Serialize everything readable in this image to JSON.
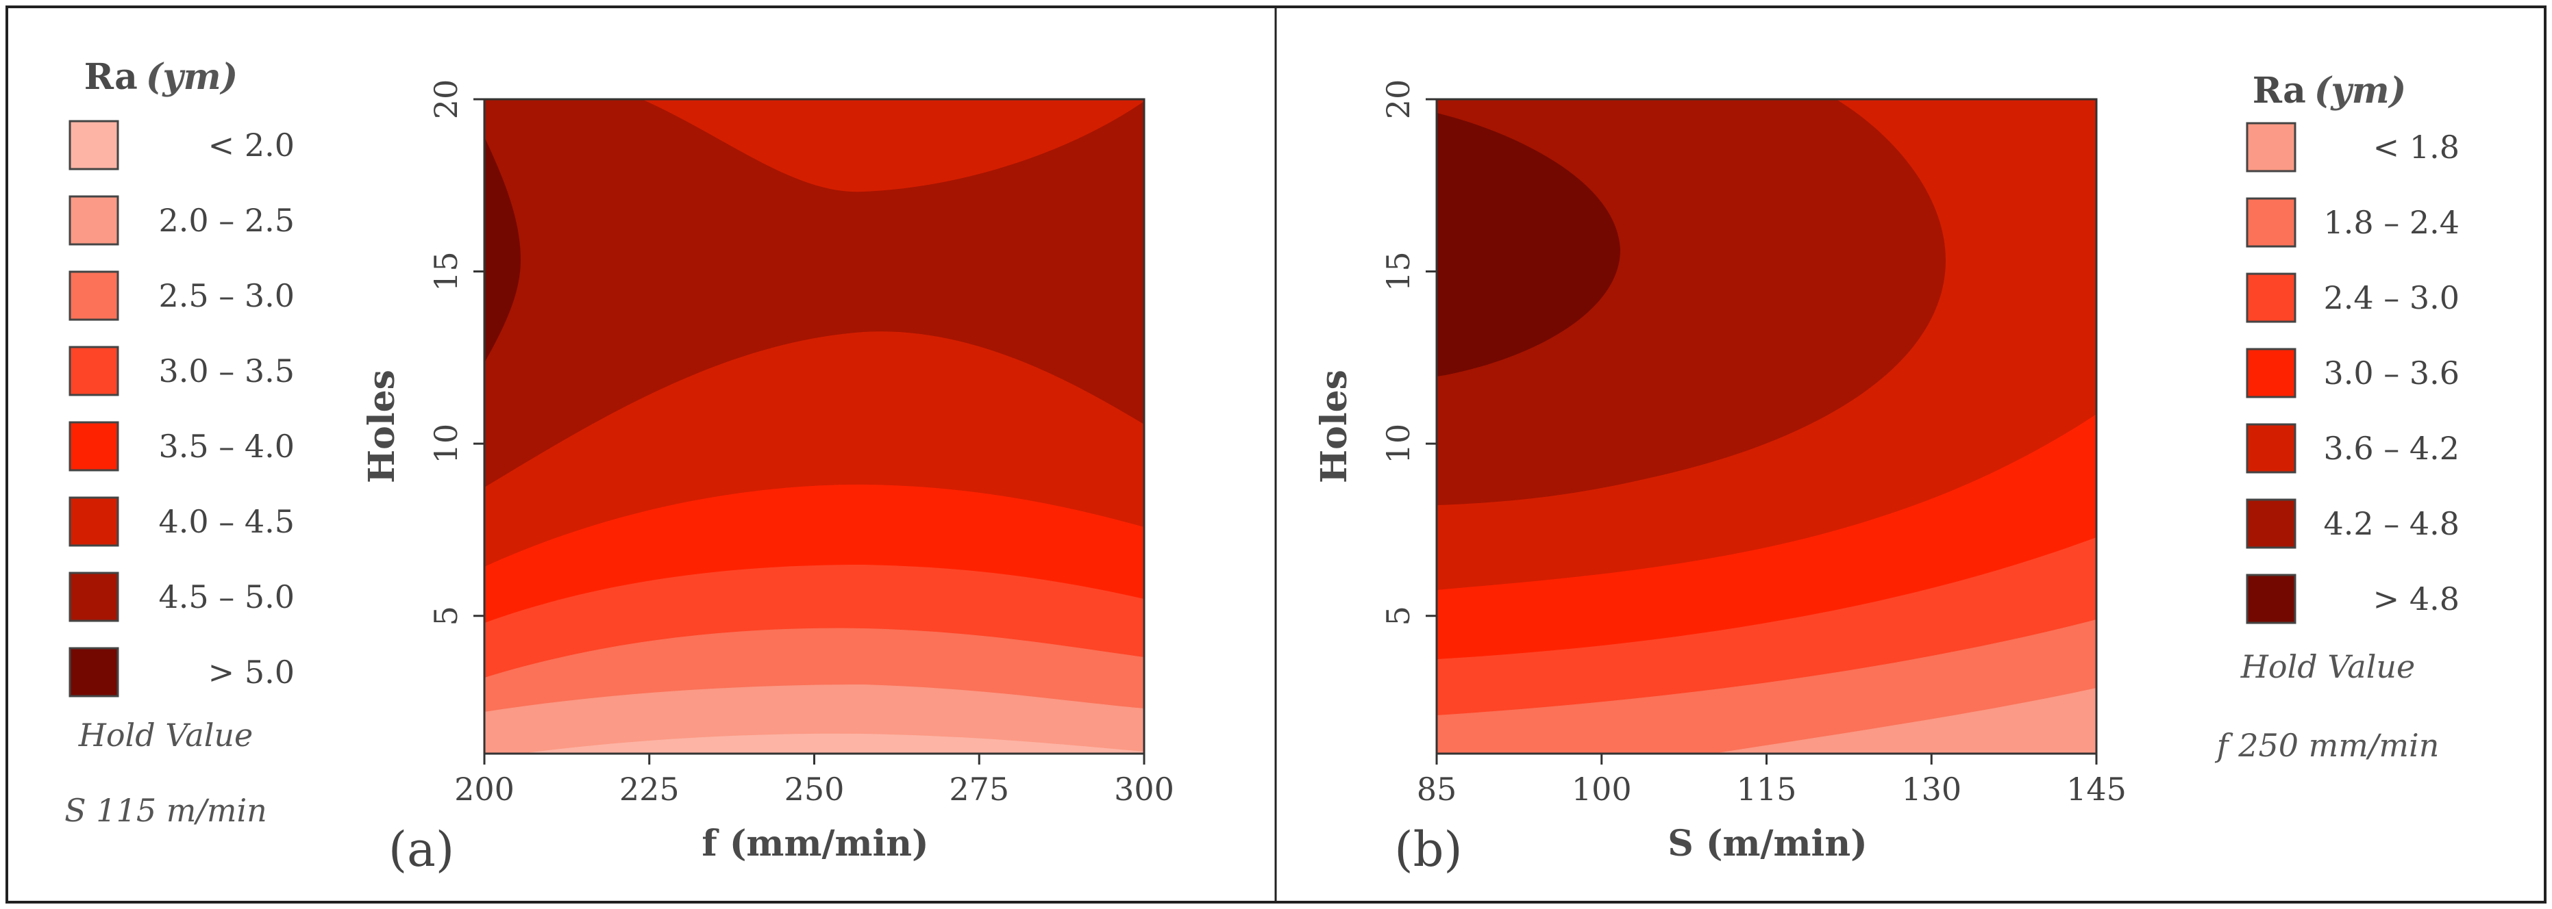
{
  "chart_data": [
    {
      "type": "contour",
      "panel_label": "(a)",
      "title": "",
      "xlabel": "f (mm/min)",
      "ylabel": "Holes",
      "xlim": [
        200,
        300
      ],
      "ylim": [
        1,
        20
      ],
      "xticks": [
        "200",
        "225",
        "250",
        "275",
        "300"
      ],
      "yticks": [
        "5",
        "10",
        "15",
        "20"
      ],
      "legend": {
        "title_main": "Ra",
        "title_unit": "(ym)",
        "placement": "left",
        "entries": [
          {
            "label": "< 2.0",
            "color": "#fdb4a5"
          },
          {
            "label": "2.0 – 2.5",
            "color": "#fb9a86"
          },
          {
            "label": "2.5 – 3.0",
            "color": "#fb7258"
          },
          {
            "label": "3.0 – 3.5",
            "color": "#fe4527"
          },
          {
            "label": "3.5 – 4.0",
            "color": "#ff2200"
          },
          {
            "label": "4.0 – 4.5",
            "color": "#d41e00"
          },
          {
            "label": "4.5 – 5.0",
            "color": "#a51400"
          },
          {
            "label": "> 5.0",
            "color": "#730800"
          }
        ],
        "hold_title": "Hold Value",
        "hold_value": "S 115 m/min"
      }
    },
    {
      "type": "contour",
      "panel_label": "(b)",
      "title": "",
      "xlabel": "S (m/min)",
      "ylabel": "Holes",
      "xlim": [
        85,
        145
      ],
      "ylim": [
        1,
        20
      ],
      "xticks": [
        "85",
        "100",
        "115",
        "130",
        "145"
      ],
      "yticks": [
        "5",
        "10",
        "15",
        "20"
      ],
      "legend": {
        "title_main": "Ra",
        "title_unit": "(ym)",
        "placement": "right",
        "entries": [
          {
            "label": "< 1.8",
            "color": "#fb9a86"
          },
          {
            "label": "1.8 – 2.4",
            "color": "#fb7258"
          },
          {
            "label": "2.4 – 3.0",
            "color": "#fe4527"
          },
          {
            "label": "3.0 – 3.6",
            "color": "#ff2200"
          },
          {
            "label": "3.6 – 4.2",
            "color": "#d41e00"
          },
          {
            "label": "4.2 – 4.8",
            "color": "#a51400"
          },
          {
            "label": "> 4.8",
            "color": "#730800"
          }
        ],
        "hold_title": "Hold Value",
        "hold_value": "f 250 mm/min"
      }
    }
  ]
}
